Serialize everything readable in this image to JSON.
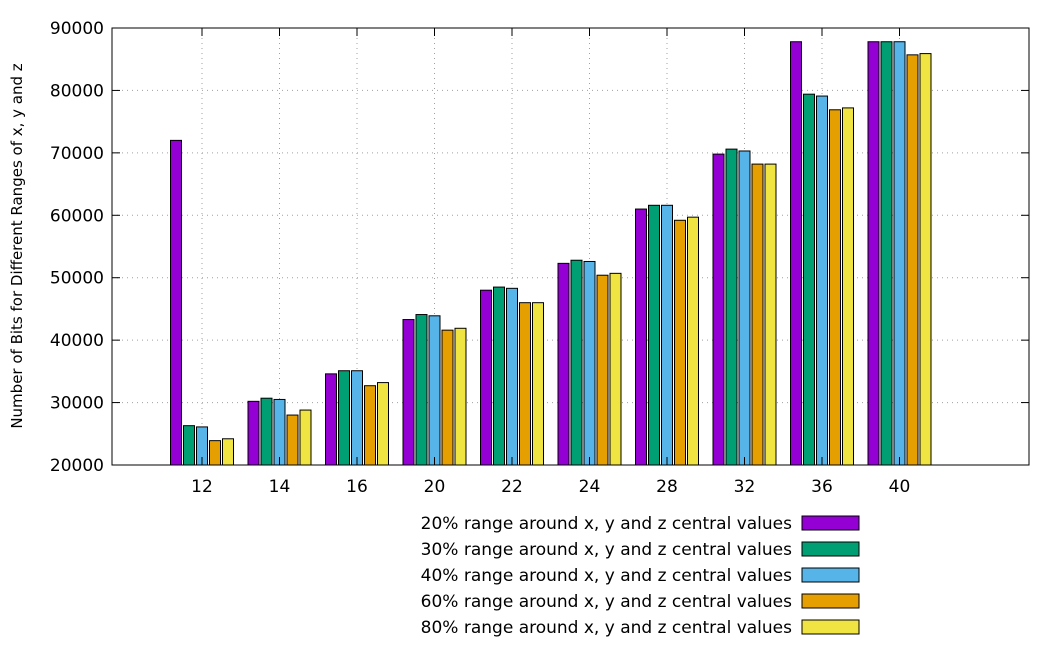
{
  "chart_data": {
    "type": "bar",
    "title": "",
    "xlabel": "",
    "ylabel": "Number of Bits for Different Ranges of x, y and z",
    "categories": [
      "12",
      "14",
      "16",
      "20",
      "22",
      "24",
      "28",
      "32",
      "36",
      "40"
    ],
    "ylim": [
      20000,
      90000
    ],
    "yticks": [
      20000,
      30000,
      40000,
      50000,
      60000,
      70000,
      80000,
      90000
    ],
    "grid": true,
    "legend_position": "bottom",
    "series": [
      {
        "name": "20% range around x, y and z central values",
        "color": "#9400d3",
        "values": [
          72000,
          30200,
          34600,
          43300,
          48000,
          52300,
          61000,
          69800,
          87800,
          87800
        ]
      },
      {
        "name": "30% range around x, y and z central values",
        "color": "#009e73",
        "values": [
          26300,
          30700,
          35100,
          44100,
          48500,
          52800,
          61600,
          70600,
          79400,
          87800
        ]
      },
      {
        "name": "40% range around x, y and z central values",
        "color": "#56b4e9",
        "values": [
          26100,
          30500,
          35100,
          43900,
          48300,
          52600,
          61600,
          70300,
          79100,
          87800
        ]
      },
      {
        "name": "60% range around x, y and z central values",
        "color": "#e69f00",
        "values": [
          23900,
          28000,
          32700,
          41600,
          46000,
          50400,
          59200,
          68200,
          76900,
          85700
        ]
      },
      {
        "name": "80% range around x, y and z central values",
        "color": "#f0e442",
        "values": [
          24200,
          28800,
          33200,
          41900,
          46000,
          50700,
          59700,
          68200,
          77200,
          85900
        ]
      }
    ]
  }
}
